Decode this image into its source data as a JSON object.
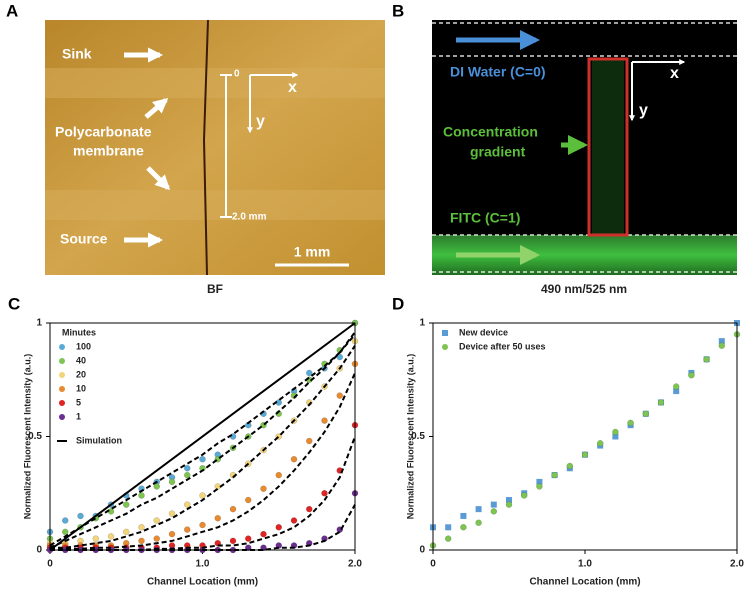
{
  "panels": {
    "A": {
      "letter": "A",
      "sink": "Sink",
      "membrane": [
        "Polycarbonate",
        "membrane"
      ],
      "source": "Source",
      "origin": "0",
      "x_axis": "x",
      "y_axis": "y",
      "length": "2.0 mm",
      "scale_bar": "1 mm",
      "caption": "BF"
    },
    "B": {
      "letter": "B",
      "water": "DI Water (C=0)",
      "gradient": [
        "Concentration",
        "gradient"
      ],
      "fitc": "FITC (C=1)",
      "x_axis": "x",
      "y_axis": "y",
      "caption": "490 nm/525 nm"
    }
  },
  "chart_data": [
    {
      "type": "scatter",
      "letter": "C",
      "xlabel": "Channel Location (mm)",
      "ylabel": "Normalized Fluorescent Intensity (a.u.)",
      "xlim": [
        0,
        2
      ],
      "ylim": [
        0,
        1
      ],
      "xticks": [
        0,
        {
          "value": 1,
          "label": "1.0"
        },
        {
          "value": 2,
          "label": "2.0"
        }
      ],
      "yticks": [
        0,
        0.5,
        1
      ],
      "legend_title": "Minutes",
      "simulation_label": "Simulation",
      "x": [
        0,
        0.1,
        0.2,
        0.3,
        0.4,
        0.5,
        0.6,
        0.7,
        0.8,
        0.9,
        1,
        1.1,
        1.2,
        1.3,
        1.4,
        1.5,
        1.6,
        1.7,
        1.8,
        1.9,
        2
      ],
      "steady_state": {
        "x": [
          0,
          2
        ],
        "values": [
          0,
          1
        ]
      },
      "series": [
        {
          "name": "100",
          "color": "#5aaad6",
          "values": [
            0.08,
            0.13,
            0.15,
            0.15,
            0.2,
            0.24,
            0.27,
            0.3,
            0.32,
            0.36,
            0.4,
            0.42,
            0.5,
            0.55,
            0.6,
            0.65,
            0.7,
            0.78,
            0.8,
            0.85,
            1.0
          ],
          "simulation": [
            0.02,
            0.06,
            0.1,
            0.14,
            0.18,
            0.22,
            0.26,
            0.3,
            0.34,
            0.38,
            0.42,
            0.47,
            0.51,
            0.56,
            0.61,
            0.66,
            0.71,
            0.76,
            0.81,
            0.87,
            0.96
          ]
        },
        {
          "name": "40",
          "color": "#7dc450",
          "values": [
            0.05,
            0.08,
            0.1,
            0.14,
            0.17,
            0.2,
            0.24,
            0.28,
            0.3,
            0.33,
            0.36,
            0.4,
            0.45,
            0.5,
            0.55,
            0.6,
            0.68,
            0.75,
            0.82,
            0.88,
            1.0
          ],
          "simulation": [
            0.01,
            0.04,
            0.07,
            0.1,
            0.13,
            0.16,
            0.2,
            0.23,
            0.27,
            0.31,
            0.35,
            0.4,
            0.45,
            0.5,
            0.55,
            0.61,
            0.67,
            0.74,
            0.8,
            0.87,
            0.95
          ]
        },
        {
          "name": "20",
          "color": "#f2d47a",
          "values": [
            0.03,
            0.03,
            0.04,
            0.05,
            0.06,
            0.08,
            0.1,
            0.13,
            0.16,
            0.2,
            0.24,
            0.28,
            0.33,
            0.38,
            0.44,
            0.5,
            0.57,
            0.65,
            0.72,
            0.8,
            0.92
          ],
          "simulation": [
            0.01,
            0.01,
            0.02,
            0.03,
            0.04,
            0.06,
            0.08,
            0.11,
            0.14,
            0.18,
            0.22,
            0.27,
            0.32,
            0.38,
            0.44,
            0.5,
            0.57,
            0.64,
            0.72,
            0.8,
            0.9
          ]
        },
        {
          "name": "10",
          "color": "#e88a30",
          "values": [
            0.02,
            0.02,
            0.02,
            0.02,
            0.02,
            0.03,
            0.04,
            0.05,
            0.07,
            0.09,
            0.11,
            0.14,
            0.18,
            0.22,
            0.27,
            0.33,
            0.4,
            0.48,
            0.57,
            0.68,
            0.82
          ],
          "simulation": [
            0.005,
            0.005,
            0.005,
            0.01,
            0.01,
            0.015,
            0.02,
            0.03,
            0.04,
            0.06,
            0.08,
            0.1,
            0.13,
            0.17,
            0.22,
            0.28,
            0.35,
            0.43,
            0.52,
            0.63,
            0.78
          ]
        },
        {
          "name": "5",
          "color": "#e02424",
          "values": [
            0.01,
            0.01,
            0.01,
            0.01,
            0.01,
            0.01,
            0.01,
            0.01,
            0.02,
            0.02,
            0.02,
            0.03,
            0.04,
            0.05,
            0.07,
            0.1,
            0.13,
            0.18,
            0.25,
            0.35,
            0.55
          ],
          "simulation": [
            0,
            0,
            0,
            0,
            0,
            0,
            0,
            0.005,
            0.005,
            0.01,
            0.01,
            0.02,
            0.02,
            0.03,
            0.05,
            0.07,
            0.1,
            0.15,
            0.22,
            0.32,
            0.5
          ]
        },
        {
          "name": "1",
          "color": "#6b2d8f",
          "values": [
            0,
            0,
            0,
            0,
            0,
            0,
            0,
            0,
            0,
            0,
            0,
            0,
            0,
            0.01,
            0.01,
            0.02,
            0.02,
            0.03,
            0.05,
            0.09,
            0.25
          ],
          "simulation": [
            0,
            0,
            0,
            0,
            0,
            0,
            0,
            0,
            0,
            0,
            0,
            0,
            0,
            0,
            0,
            0.01,
            0.01,
            0.02,
            0.04,
            0.08,
            0.2
          ]
        }
      ]
    },
    {
      "type": "scatter",
      "letter": "D",
      "xlabel": "Channel Location (mm)",
      "ylabel": "Normalized Fluorescent Intensity (a.u.)",
      "xlim": [
        0,
        2
      ],
      "ylim": [
        0,
        1
      ],
      "xticks": [
        0,
        {
          "value": 1,
          "label": "1.0"
        },
        {
          "value": 2,
          "label": "2.0"
        }
      ],
      "yticks": [
        0,
        0.5,
        1
      ],
      "x": [
        0,
        0.1,
        0.2,
        0.3,
        0.4,
        0.5,
        0.6,
        0.7,
        0.8,
        0.9,
        1,
        1.1,
        1.2,
        1.3,
        1.4,
        1.5,
        1.6,
        1.7,
        1.8,
        1.9,
        2
      ],
      "series": [
        {
          "name": "New device",
          "color": "#5b9bd5",
          "marker": "square",
          "values": [
            0.1,
            0.1,
            0.15,
            0.18,
            0.2,
            0.22,
            0.25,
            0.3,
            0.33,
            0.36,
            0.42,
            0.46,
            0.5,
            0.55,
            0.6,
            0.65,
            0.7,
            0.78,
            0.84,
            0.92,
            1.0
          ]
        },
        {
          "name": "Device after 50 uses",
          "color": "#7dc450",
          "marker": "circle",
          "values": [
            0.02,
            0.05,
            0.1,
            0.12,
            0.17,
            0.2,
            0.24,
            0.28,
            0.33,
            0.37,
            0.42,
            0.47,
            0.52,
            0.56,
            0.6,
            0.65,
            0.72,
            0.77,
            0.84,
            0.9,
            0.95
          ]
        }
      ]
    }
  ]
}
